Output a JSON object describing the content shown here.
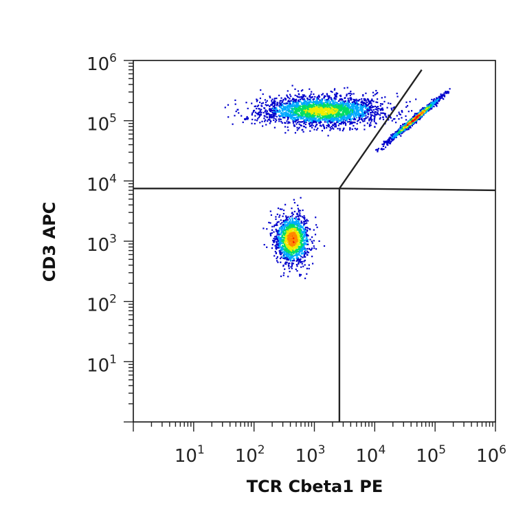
{
  "chart_data": {
    "type": "scatter",
    "title": "",
    "xlabel": "TCR Cbeta1 PE",
    "ylabel": "CD3 APC",
    "x_scale": "log",
    "y_scale": "log",
    "xlim": [
      1,
      1000000
    ],
    "ylim": [
      1,
      1000000
    ],
    "x_ticks": [
      {
        "base": "10",
        "exp": "1",
        "value": 10
      },
      {
        "base": "10",
        "exp": "2",
        "value": 100
      },
      {
        "base": "10",
        "exp": "3",
        "value": 1000
      },
      {
        "base": "10",
        "exp": "4",
        "value": 10000
      },
      {
        "base": "10",
        "exp": "5",
        "value": 100000
      },
      {
        "base": "10",
        "exp": "6",
        "value": 1000000
      }
    ],
    "y_ticks": [
      {
        "base": "10",
        "exp": "1",
        "value": 10
      },
      {
        "base": "10",
        "exp": "2",
        "value": 100
      },
      {
        "base": "10",
        "exp": "3",
        "value": 1000
      },
      {
        "base": "10",
        "exp": "4",
        "value": 10000
      },
      {
        "base": "10",
        "exp": "5",
        "value": 100000
      },
      {
        "base": "10",
        "exp": "6",
        "value": 1000000
      }
    ],
    "grid": false,
    "legend": "none",
    "density_colors": [
      "#0000cc",
      "#00aaff",
      "#00dd66",
      "#eeee00",
      "#ff8800",
      "#ee0000"
    ],
    "populations": [
      {
        "center_x": 1300,
        "center_y": 150000,
        "spread_x_decades": 0.5,
        "spread_y_decades": 0.12,
        "peak_density": 0.55
      },
      {
        "center_x": 45000,
        "center_y": 110000,
        "spread_x_decades": 0.13,
        "spread_y_decades": 0.1,
        "peak_density": 1.0
      },
      {
        "center_x": 420,
        "center_y": 1100,
        "spread_x_decades": 0.14,
        "spread_y_decades": 0.2,
        "peak_density": 0.8
      }
    ],
    "gates": [
      {
        "type": "line",
        "points": [
          [
            1,
            7500
          ],
          [
            2600,
            7500
          ],
          [
            1000000,
            7000
          ]
        ]
      },
      {
        "type": "line",
        "points": [
          [
            2600,
            1
          ],
          [
            2600,
            7500
          ]
        ]
      },
      {
        "type": "line",
        "points": [
          [
            2600,
            7500
          ],
          [
            60000,
            700000
          ]
        ]
      }
    ]
  }
}
